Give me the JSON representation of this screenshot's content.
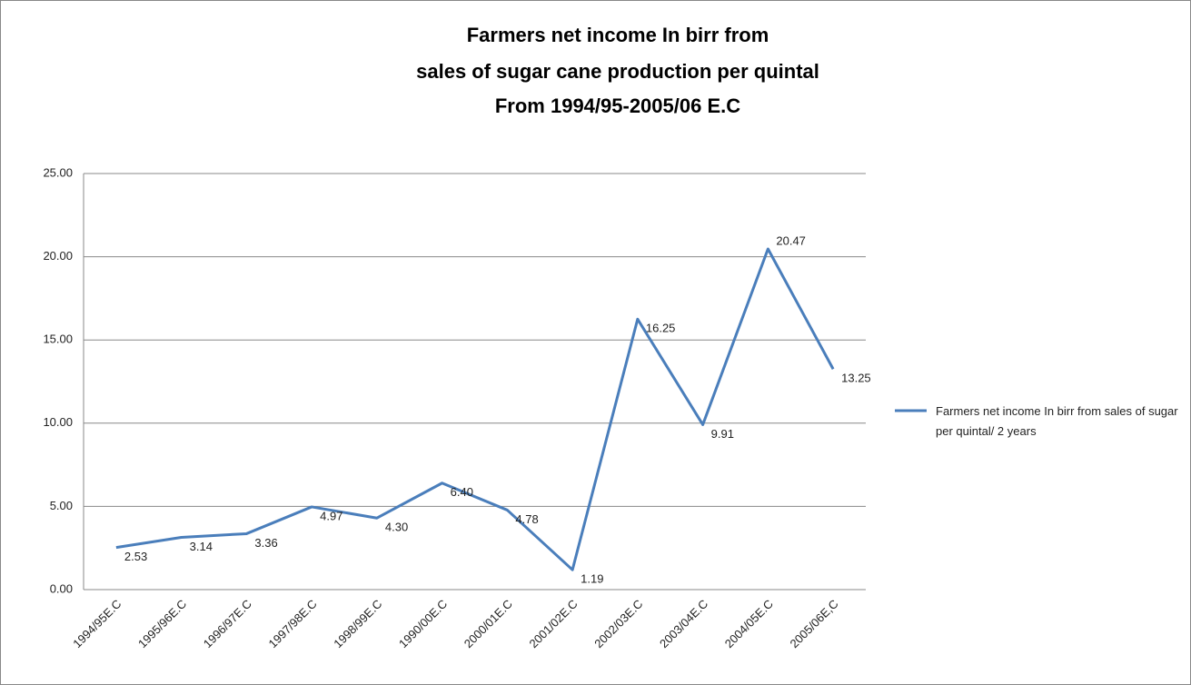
{
  "chart_data": {
    "type": "line",
    "title": [
      "Farmers net income In birr  from",
      "sales of sugar cane production per quintal",
      "From 1994/95-2005/06 E.C"
    ],
    "categories": [
      "1994/95E.C",
      "1995/96E.C",
      "1996/97E.C",
      "1997/98E.C",
      "1998/99E.C",
      "1990/00E.C",
      "2000/01E.C",
      "2001/02E.C",
      "2002/03E.C",
      "2003/04E.C",
      "2004/05E.C",
      "2005/06E,C"
    ],
    "series": [
      {
        "name": "Farmers net income In birr  from sales of sugar per quintal/ 2 years",
        "color": "#4a7ebb",
        "values": [
          2.53,
          3.14,
          3.36,
          4.97,
          4.3,
          6.4,
          4.78,
          1.19,
          16.25,
          9.91,
          20.47,
          13.25
        ],
        "value_labels": [
          "2.53",
          "3.14",
          "3.36",
          "4.97",
          "4.30",
          "6.40",
          "4.78",
          "1.19",
          "16.25",
          "9.91",
          "20.47",
          "13.25"
        ]
      }
    ],
    "ylim": [
      0,
      25
    ],
    "yticks": [
      {
        "value": 0,
        "label": "0.00"
      },
      {
        "value": 5,
        "label": "5.00"
      },
      {
        "value": 10,
        "label": "10.00"
      },
      {
        "value": 15,
        "label": "15.00"
      },
      {
        "value": 20,
        "label": "20.00"
      },
      {
        "value": 25,
        "label": "25.00"
      }
    ],
    "grid": true,
    "legend": "right"
  }
}
